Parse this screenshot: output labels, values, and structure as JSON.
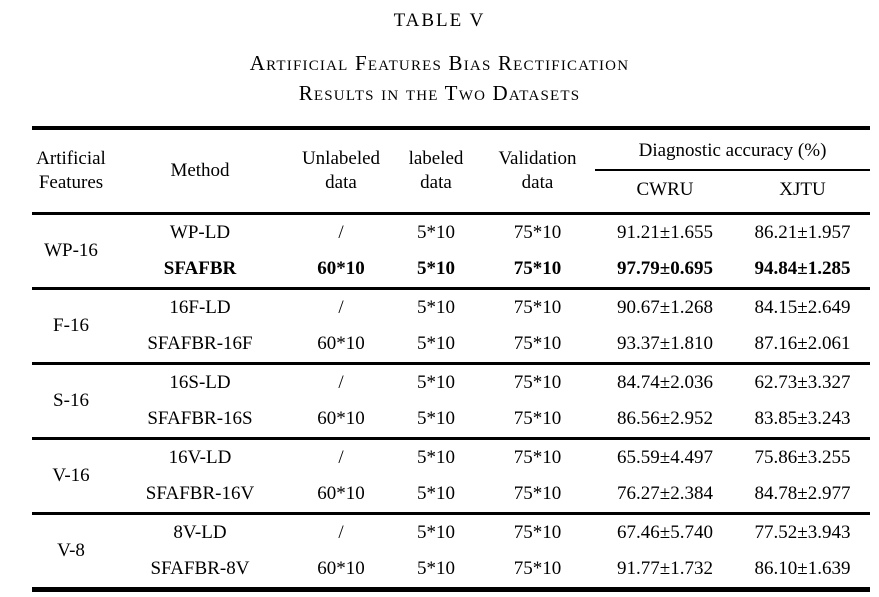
{
  "page": {
    "title": "TABLE V",
    "subtitle_line1": "Artificial Features Bias Rectification",
    "subtitle_line2": "Results in the Two Datasets",
    "colors": {
      "text": "#000000",
      "background": "#ffffff",
      "rule": "#000000"
    }
  },
  "table": {
    "header": {
      "artificial_features": "Artificial\nFeatures",
      "method": "Method",
      "unlabeled_data": "Unlabeled\ndata",
      "labeled_data": "labeled\ndata",
      "validation_data": "Validation\ndata",
      "diagnostic_accuracy": "Diagnostic accuracy (%)",
      "cwru": "CWRU",
      "xjtu": "XJTU"
    },
    "groups": [
      {
        "feature": "WP-16",
        "rows": [
          {
            "method": "WP-LD",
            "unlabeled": "/",
            "labeled": "5*10",
            "validation": "75*10",
            "cwru": "91.21±1.655",
            "xjtu": "86.21±1.957",
            "bold": false
          },
          {
            "method": "SFAFBR",
            "unlabeled": "60*10",
            "labeled": "5*10",
            "validation": "75*10",
            "cwru": "97.79±0.695",
            "xjtu": "94.84±1.285",
            "bold": true
          }
        ]
      },
      {
        "feature": "F-16",
        "rows": [
          {
            "method": "16F-LD",
            "unlabeled": "/",
            "labeled": "5*10",
            "validation": "75*10",
            "cwru": "90.67±1.268",
            "xjtu": "84.15±2.649",
            "bold": false
          },
          {
            "method": "SFAFBR-16F",
            "unlabeled": "60*10",
            "labeled": "5*10",
            "validation": "75*10",
            "cwru": "93.37±1.810",
            "xjtu": "87.16±2.061",
            "bold": false
          }
        ]
      },
      {
        "feature": "S-16",
        "rows": [
          {
            "method": "16S-LD",
            "unlabeled": "/",
            "labeled": "5*10",
            "validation": "75*10",
            "cwru": "84.74±2.036",
            "xjtu": "62.73±3.327",
            "bold": false
          },
          {
            "method": "SFAFBR-16S",
            "unlabeled": "60*10",
            "labeled": "5*10",
            "validation": "75*10",
            "cwru": "86.56±2.952",
            "xjtu": "83.85±3.243",
            "bold": false
          }
        ]
      },
      {
        "feature": "V-16",
        "rows": [
          {
            "method": "16V-LD",
            "unlabeled": "/",
            "labeled": "5*10",
            "validation": "75*10",
            "cwru": "65.59±4.497",
            "xjtu": "75.86±3.255",
            "bold": false
          },
          {
            "method": "SFAFBR-16V",
            "unlabeled": "60*10",
            "labeled": "5*10",
            "validation": "75*10",
            "cwru": "76.27±2.384",
            "xjtu": "84.78±2.977",
            "bold": false
          }
        ]
      },
      {
        "feature": "V-8",
        "rows": [
          {
            "method": "8V-LD",
            "unlabeled": "/",
            "labeled": "5*10",
            "validation": "75*10",
            "cwru": "67.46±5.740",
            "xjtu": "77.52±3.943",
            "bold": false
          },
          {
            "method": "SFAFBR-8V",
            "unlabeled": "60*10",
            "labeled": "5*10",
            "validation": "75*10",
            "cwru": "91.77±1.732",
            "xjtu": "86.10±1.639",
            "bold": false
          }
        ]
      }
    ]
  }
}
